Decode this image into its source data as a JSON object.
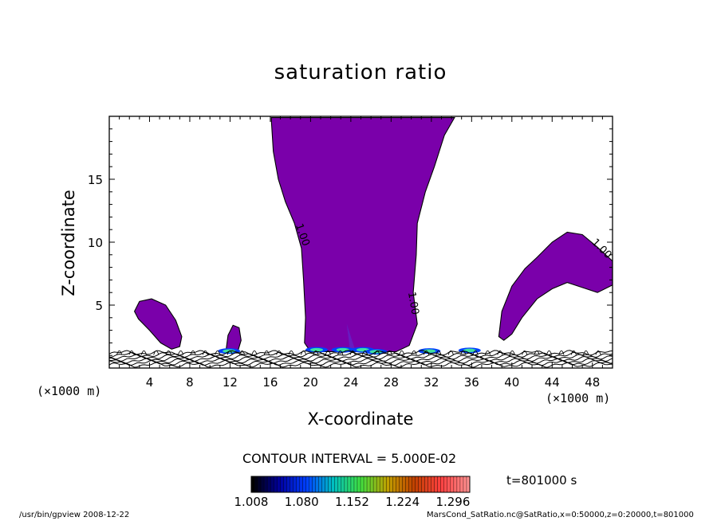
{
  "chart_data": {
    "type": "heatmap",
    "title": "saturation ratio",
    "xlabel": "X-coordinate",
    "ylabel": "Z-coordinate",
    "x_unit_label": "(×1000 m)",
    "xlim": [
      0,
      50
    ],
    "ylim": [
      0,
      20
    ],
    "x_ticks": [
      4,
      8,
      12,
      16,
      20,
      24,
      28,
      32,
      36,
      40,
      44,
      48
    ],
    "y_ticks": [
      5,
      10,
      15
    ],
    "contour_interval_text": "CONTOUR INTERVAL = 5.000E-02",
    "contour_labels": [
      "1.00",
      "1.00",
      "1.00"
    ],
    "time_text": "t=801000 s",
    "colorbar": {
      "min": 1.008,
      "max": 1.32,
      "tick_values": [
        1.008,
        1.08,
        1.152,
        1.224,
        1.296
      ],
      "tick_labels": [
        "1.008",
        "1.080",
        "1.152",
        "1.224",
        "1.296"
      ],
      "colors": [
        "#000000",
        "#0000a0",
        "#0040ff",
        "#00c0c0",
        "#40e040",
        "#c0a000",
        "#c04000",
        "#ff4040",
        "#ff9090"
      ]
    },
    "fill_color": "#7a00aa",
    "regions": [
      {
        "name": "central-plume",
        "points": [
          [
            16.1,
            19.7
          ],
          [
            16.3,
            17.2
          ],
          [
            16.8,
            15.0
          ],
          [
            17.5,
            13.2
          ],
          [
            18.4,
            11.5
          ],
          [
            19.1,
            9.5
          ],
          [
            19.3,
            7.0
          ],
          [
            19.5,
            4.0
          ],
          [
            19.4,
            2.0
          ],
          [
            20.0,
            1.3
          ],
          [
            28.5,
            1.3
          ],
          [
            29.8,
            1.8
          ],
          [
            30.6,
            3.5
          ],
          [
            30.2,
            6.0
          ],
          [
            30.5,
            9.0
          ],
          [
            30.6,
            11.5
          ],
          [
            31.4,
            14.0
          ],
          [
            32.3,
            16.0
          ],
          [
            33.3,
            18.5
          ],
          [
            34.3,
            19.9
          ],
          [
            16.1,
            19.9
          ]
        ]
      },
      {
        "name": "left-cloud",
        "points": [
          [
            2.5,
            4.5
          ],
          [
            3.0,
            5.3
          ],
          [
            4.2,
            5.5
          ],
          [
            5.6,
            5.0
          ],
          [
            6.6,
            3.8
          ],
          [
            7.2,
            2.5
          ],
          [
            7.0,
            1.7
          ],
          [
            6.2,
            1.5
          ],
          [
            5.1,
            2.0
          ],
          [
            4.0,
            3.0
          ],
          [
            2.9,
            3.9
          ]
        ]
      },
      {
        "name": "small-cloud",
        "points": [
          [
            11.6,
            1.4
          ],
          [
            11.8,
            2.6
          ],
          [
            12.3,
            3.4
          ],
          [
            12.9,
            3.2
          ],
          [
            13.1,
            2.2
          ],
          [
            12.8,
            1.4
          ]
        ]
      },
      {
        "name": "right-cloud",
        "points": [
          [
            38.7,
            2.5
          ],
          [
            39.0,
            4.5
          ],
          [
            40.0,
            6.5
          ],
          [
            41.3,
            7.9
          ],
          [
            42.5,
            8.8
          ],
          [
            44.0,
            10.0
          ],
          [
            45.5,
            10.8
          ],
          [
            47.0,
            10.6
          ],
          [
            48.5,
            9.6
          ],
          [
            50.0,
            8.5
          ],
          [
            50.0,
            6.6
          ],
          [
            48.5,
            6.0
          ],
          [
            47.0,
            6.4
          ],
          [
            45.5,
            6.8
          ],
          [
            44.0,
            6.3
          ],
          [
            42.5,
            5.5
          ],
          [
            41.0,
            4.0
          ],
          [
            40.0,
            2.7
          ],
          [
            39.2,
            2.2
          ]
        ]
      }
    ]
  },
  "footer": {
    "left": "/usr/bin/gpview   2008-12-22",
    "right": "MarsCond_SatRatio.nc@SatRatio,x=0:50000,z=0:20000,t=801000"
  }
}
